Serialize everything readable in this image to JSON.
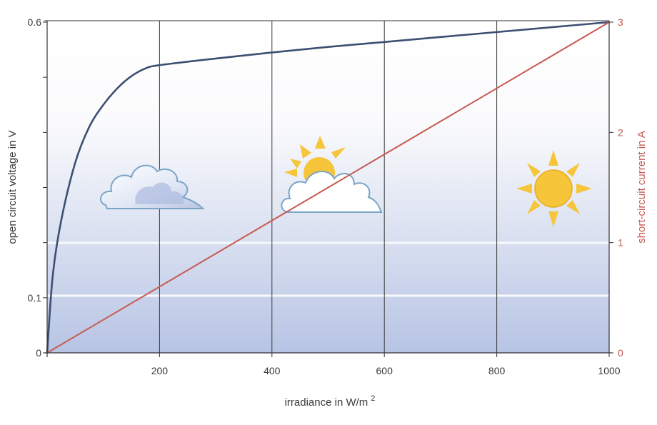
{
  "chart_data": {
    "type": "line",
    "xlabel": "irradiance in W/m",
    "xlabel_superscript": "2",
    "ylabel_left": "open circuit voltage in V",
    "ylabel_right": "short-circuit current in A",
    "xlim": [
      0,
      1000
    ],
    "ylim_left": [
      0,
      0.6
    ],
    "ylim_right": [
      0,
      3
    ],
    "x_ticks": [
      {
        "value": 200,
        "label": "200"
      },
      {
        "value": 400,
        "label": "400"
      },
      {
        "value": 600,
        "label": "600"
      },
      {
        "value": 800,
        "label": "800"
      },
      {
        "value": 1000,
        "label": "1000"
      }
    ],
    "y_left_ticks": [
      {
        "value": 0,
        "label": "0"
      },
      {
        "value": 0.1,
        "label": "0.1"
      },
      {
        "value": 0.6,
        "label": "0.6"
      }
    ],
    "y_right_ticks": [
      {
        "value": 0,
        "label": "0"
      },
      {
        "value": 1,
        "label": "1"
      },
      {
        "value": 2,
        "label": "2"
      },
      {
        "value": 3,
        "label": "3"
      }
    ],
    "grid": true,
    "series": [
      {
        "axis": "left",
        "color": "#3d4f73",
        "x": [
          0,
          10,
          25,
          50,
          75,
          100,
          125,
          150,
          175,
          200,
          300,
          400,
          500,
          600,
          700,
          800,
          900,
          1000
        ],
        "y": [
          0,
          0.14,
          0.24,
          0.345,
          0.41,
          0.45,
          0.48,
          0.502,
          0.516,
          0.522,
          0.534,
          0.545,
          0.555,
          0.564,
          0.573,
          0.582,
          0.591,
          0.6
        ]
      },
      {
        "axis": "right",
        "color": "#c75b52",
        "x": [
          0,
          1000
        ],
        "y": [
          0,
          3
        ]
      }
    ]
  },
  "colors": {
    "background_top": "#ffffff",
    "background_bottom": "#b9c6e6",
    "grid": "#3a3a3a",
    "voltage_line": "#3d4f73",
    "current_line": "#c75b52",
    "sun": "#f6c53a"
  },
  "illustrations": [
    "cloud-icon",
    "sun-behind-cloud-icon",
    "sun-icon"
  ]
}
